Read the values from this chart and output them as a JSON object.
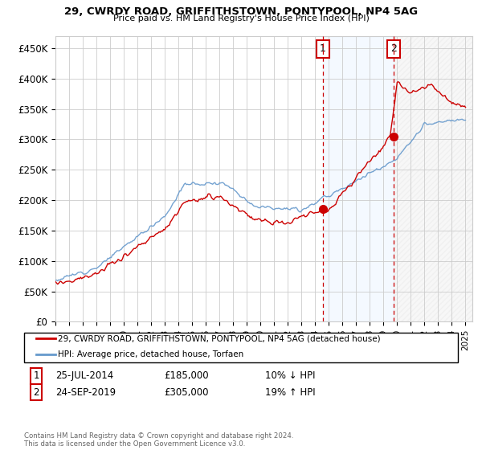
{
  "title": "29, CWRDY ROAD, GRIFFITHSTOWN, PONTYPOOL, NP4 5AG",
  "subtitle": "Price paid vs. HM Land Registry's House Price Index (HPI)",
  "ylim": [
    0,
    470000
  ],
  "yticks": [
    0,
    50000,
    100000,
    150000,
    200000,
    250000,
    300000,
    350000,
    400000,
    450000
  ],
  "ytick_labels": [
    "£0",
    "£50K",
    "£100K",
    "£150K",
    "£200K",
    "£250K",
    "£300K",
    "£350K",
    "£400K",
    "£450K"
  ],
  "sale1_date": "25-JUL-2014",
  "sale1_price": 185000,
  "sale1_hpi_text": "10% ↓ HPI",
  "sale1_year": 2014.56,
  "sale2_date": "24-SEP-2019",
  "sale2_price": 305000,
  "sale2_hpi_text": "19% ↑ HPI",
  "sale2_year": 2019.73,
  "legend_line1": "29, CWRDY ROAD, GRIFFITHSTOWN, PONTYPOOL, NP4 5AG (detached house)",
  "legend_line2": "HPI: Average price, detached house, Torfaen",
  "footnote": "Contains HM Land Registry data © Crown copyright and database right 2024.\nThis data is licensed under the Open Government Licence v3.0.",
  "line_red": "#cc0000",
  "line_blue": "#6699cc",
  "shade_color": "#ddeeff",
  "hatch_color": "#cccccc",
  "annotation_box_color": "#cc0000",
  "grid_color": "#cccccc",
  "background_color": "#ffffff"
}
